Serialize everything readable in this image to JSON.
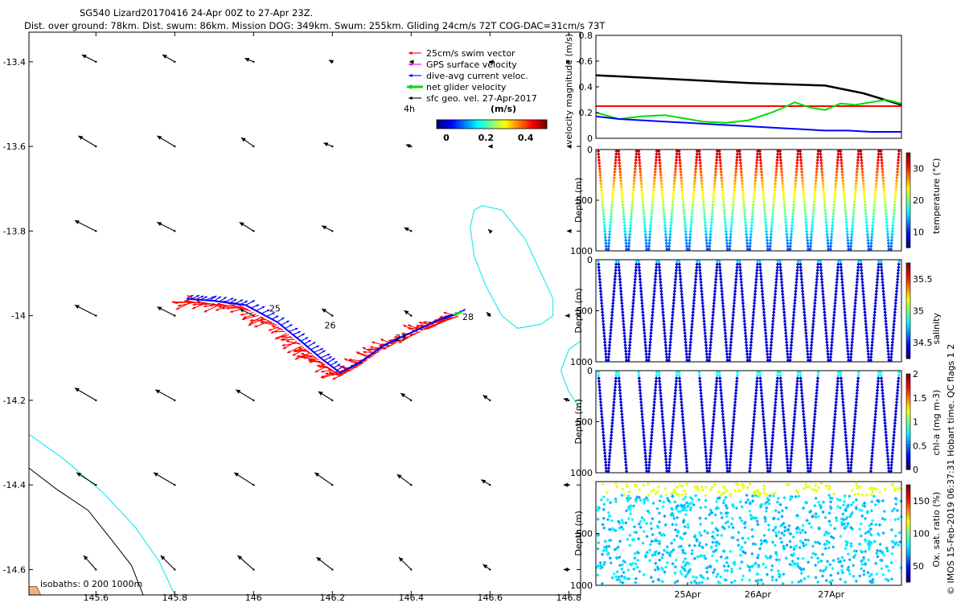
{
  "header": {
    "title_line1": "SG540 Lizard20170416 24-Apr 00Z to 27-Apr 23Z.",
    "title_line2": "Dist. over ground: 78km. Dist. swum: 86km. Mission DOG: 349km. Swum: 255km. Gliding 24cm/s 72T COG-DAC=31cm/s 73T"
  },
  "credit": "© IMOS 15-Feb-2019 06:37:31 Hobart time. QC flags 1  2",
  "colors": {
    "swim": "#ff0000",
    "gps": "#e000e0",
    "dac": "#0000ff",
    "net": "#00dd00",
    "isobath_shallow": "#000000",
    "isobath_deep": "#00e5ee",
    "velocity_ref": "#ff0000"
  },
  "chart_data": [
    {
      "id": "map",
      "type": "vector_map",
      "xlim": [
        145.43,
        146.83
      ],
      "ylim": [
        -14.66,
        -13.33
      ],
      "xticks": [
        145.6,
        145.8,
        146,
        146.2,
        146.4,
        146.6,
        146.8
      ],
      "xtick_labels": [
        "145.6",
        "145.8",
        "146",
        "146.2",
        "146.4",
        "146.6",
        "146.8"
      ],
      "yticks": [
        -13.4,
        -13.6,
        -13.8,
        -14,
        -14.2,
        -14.4,
        -14.6
      ],
      "ytick_labels": [
        "-13.4",
        "-13.6",
        "-13.8",
        "-14",
        "-14.2",
        "-14.4",
        "-14.6"
      ],
      "legend": {
        "position": "top-right",
        "entries": [
          {
            "label": "25cm/s swim vector",
            "color_key": "swim"
          },
          {
            "label": "GPS surface velocity",
            "color_key": "gps"
          },
          {
            "label": "dive-avg current veloc.",
            "color_key": "dac"
          },
          {
            "label": "net glider velocity",
            "color_key": "net"
          },
          {
            "label": "sfc geo. vel. 27-Apr-2017",
            "color_key": "isobath_shallow"
          }
        ],
        "time_tag": "4h",
        "colorbar_title": "(m/s)",
        "colorbar_ticks": [
          "0",
          "0.2",
          "0.4"
        ]
      },
      "isobath_label": "isobaths: 0   200  1000m",
      "day_labels": [
        {
          "text": "25",
          "lon": 146.04,
          "lat": -13.99
        },
        {
          "text": "26",
          "lon": 146.18,
          "lat": -14.03
        },
        {
          "text": "27",
          "lon": 146.36,
          "lat": -14.06
        },
        {
          "text": "28",
          "lon": 146.53,
          "lat": -14.01
        }
      ],
      "track": [
        [
          145.83,
          -13.96
        ],
        [
          145.9,
          -13.965
        ],
        [
          145.98,
          -13.975
        ],
        [
          146.06,
          -14.015
        ],
        [
          146.12,
          -14.06
        ],
        [
          146.17,
          -14.1
        ],
        [
          146.22,
          -14.135
        ],
        [
          146.27,
          -14.11
        ],
        [
          146.33,
          -14.07
        ],
        [
          146.4,
          -14.04
        ],
        [
          146.47,
          -14.01
        ],
        [
          146.52,
          -13.995
        ]
      ],
      "sfc_vectors": {
        "lons": [
          145.6,
          145.8,
          146,
          146.2,
          146.4,
          146.6,
          146.8
        ],
        "lats": [
          -13.4,
          -13.6,
          -13.8,
          -14,
          -14.2,
          -14.4,
          -14.6
        ],
        "u": [
          [
            -0.08,
            -0.07,
            -0.05,
            -0.02,
            -0.01,
            -0.005,
            0.01
          ],
          [
            -0.1,
            -0.1,
            -0.07,
            -0.05,
            -0.03,
            -0.01,
            -0.01
          ],
          [
            -0.12,
            -0.1,
            -0.08,
            -0.06,
            -0.04,
            -0.01,
            -0.01
          ],
          [
            -0.12,
            -0.1,
            -0.08,
            -0.06,
            -0.04,
            -0.02,
            -0.02
          ],
          [
            -0.12,
            -0.11,
            -0.1,
            -0.08,
            -0.06,
            -0.04,
            -0.03
          ],
          [
            -0.11,
            -0.12,
            -0.11,
            -0.1,
            -0.08,
            -0.05,
            -0.03
          ],
          [
            -0.07,
            -0.08,
            -0.09,
            -0.09,
            -0.07,
            -0.04,
            -0.03
          ]
        ],
        "v": [
          [
            0.04,
            0.04,
            0.02,
            0.01,
            0.0,
            0.0,
            0.0
          ],
          [
            0.06,
            0.06,
            0.05,
            0.02,
            0.01,
            0.0,
            0.0
          ],
          [
            0.06,
            0.05,
            0.05,
            0.03,
            0.02,
            0.01,
            0.0
          ],
          [
            0.06,
            0.05,
            0.04,
            0.04,
            0.03,
            0.02,
            0.0
          ],
          [
            0.07,
            0.06,
            0.06,
            0.05,
            0.04,
            0.03,
            0.01
          ],
          [
            0.07,
            0.07,
            0.07,
            0.07,
            0.06,
            0.03,
            0.0
          ],
          [
            0.08,
            0.08,
            0.08,
            0.07,
            0.07,
            0.03,
            0.0
          ]
        ]
      }
    },
    {
      "id": "velocity",
      "type": "line",
      "ylabel": "velocity magnitude (m/s)",
      "xlim": [
        0,
        4
      ],
      "ylim": [
        0,
        0.8
      ],
      "yticks": [
        "0",
        "0.2",
        "0.4",
        "0.6",
        "0.8"
      ],
      "series": [
        {
          "name": "sfc geo",
          "color_key": "isobath_shallow",
          "x": [
            0,
            1,
            2,
            3,
            3.5,
            4
          ],
          "values": [
            0.49,
            0.46,
            0.43,
            0.41,
            0.35,
            0.26
          ]
        },
        {
          "name": "swim 25cm/s",
          "color_key": "velocity_ref",
          "x": [
            0,
            4
          ],
          "values": [
            0.25,
            0.25
          ]
        },
        {
          "name": "net glider velocity",
          "color_key": "net",
          "x": [
            0,
            0.3,
            0.6,
            0.9,
            1.1,
            1.4,
            1.7,
            2.0,
            2.3,
            2.5,
            2.6,
            2.8,
            3.0,
            3.2,
            3.4,
            3.6,
            3.8,
            4.0
          ],
          "values": [
            0.2,
            0.15,
            0.17,
            0.18,
            0.16,
            0.13,
            0.12,
            0.14,
            0.2,
            0.25,
            0.28,
            0.24,
            0.22,
            0.27,
            0.26,
            0.28,
            0.3,
            0.27
          ]
        },
        {
          "name": "dive-avg current",
          "color_key": "dac",
          "x": [
            0,
            0.3,
            0.6,
            0.9,
            1.2,
            1.5,
            1.8,
            2.1,
            2.4,
            2.7,
            3.0,
            3.3,
            3.6,
            3.9,
            4.0
          ],
          "values": [
            0.17,
            0.15,
            0.14,
            0.13,
            0.12,
            0.11,
            0.1,
            0.09,
            0.08,
            0.07,
            0.06,
            0.06,
            0.05,
            0.05,
            0.05
          ]
        }
      ]
    },
    {
      "id": "temperature",
      "type": "scatter",
      "ylabel": "Depth (m)",
      "ylim": [
        1000,
        0
      ],
      "yticks": [
        "0",
        "500",
        "1000"
      ],
      "colorbar_label": "temperature (°C)",
      "colorbar_ticks": [
        "10",
        "20",
        "30"
      ]
    },
    {
      "id": "salinity",
      "type": "scatter",
      "ylabel": "Depth (m)",
      "ylim": [
        1000,
        0
      ],
      "yticks": [
        "0",
        "500",
        "1000"
      ],
      "colorbar_label": "salinity",
      "colorbar_ticks": [
        "34.5",
        "35",
        "35.5"
      ]
    },
    {
      "id": "chla",
      "type": "scatter",
      "ylabel": "Depth (m)",
      "ylim": [
        1000,
        0
      ],
      "yticks": [
        "0",
        "500",
        "1000"
      ],
      "colorbar_label": "chl-a (mg m-3)",
      "colorbar_ticks": [
        "0",
        "0.5",
        "1",
        "1.5",
        "2"
      ]
    },
    {
      "id": "oxygen",
      "type": "scatter",
      "ylabel": "Depth (m)",
      "ylim": [
        1000,
        0
      ],
      "yticks": [
        "500",
        "1000"
      ],
      "colorbar_label": "Ox. sat. ratio (%)",
      "colorbar_ticks": [
        "50",
        "100",
        "150"
      ],
      "xtick_labels": [
        "25Apr",
        "26Apr",
        "27Apr"
      ]
    }
  ]
}
